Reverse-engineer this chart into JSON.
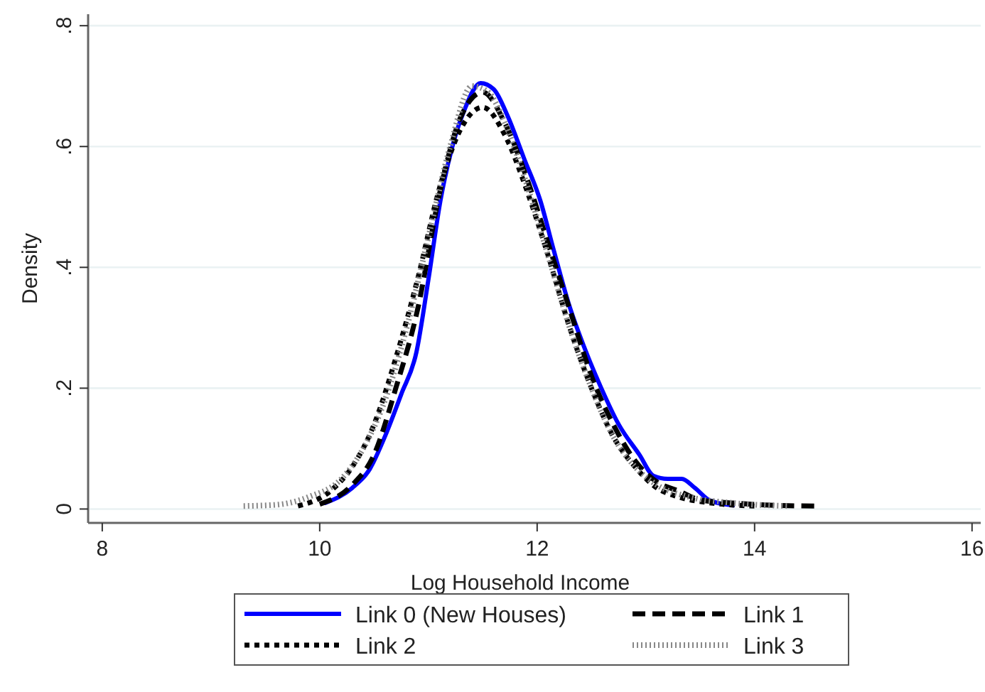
{
  "chart_data": {
    "type": "line",
    "xlabel": "Log Household Income",
    "ylabel": "Density",
    "xlim": [
      7.87,
      16.08
    ],
    "ylim": [
      -0.023,
      0.819
    ],
    "xticks": [
      8,
      10,
      12,
      14,
      16
    ],
    "yticks": [
      0,
      {
        "value": 0.2,
        "label": ".2"
      },
      {
        "value": 0.4,
        "label": ".4"
      },
      {
        "value": 0.6,
        "label": ".6"
      },
      {
        "value": 0.8,
        "label": ".8"
      }
    ],
    "grid": "y",
    "legend": "bottom",
    "series": [
      {
        "name": "Link 0 (New Houses)",
        "color": "#0000ff",
        "line_style": "solid",
        "x": [
          10.05,
          10.3,
          10.46,
          10.6,
          10.75,
          10.89,
          11.0,
          11.11,
          11.22,
          11.33,
          11.48,
          11.6,
          11.73,
          11.88,
          12.03,
          12.15,
          12.29,
          12.45,
          12.59,
          12.75,
          12.94,
          13.07,
          13.2,
          13.33,
          13.45,
          13.59,
          13.8
        ],
        "values": [
          0.01,
          0.035,
          0.066,
          0.12,
          0.19,
          0.26,
          0.38,
          0.51,
          0.6,
          0.66,
          0.705,
          0.695,
          0.65,
          0.58,
          0.51,
          0.43,
          0.34,
          0.26,
          0.2,
          0.14,
          0.09,
          0.055,
          0.05,
          0.05,
          0.035,
          0.014,
          0.006
        ]
      },
      {
        "name": "Link 1",
        "color": "#000000",
        "line_style": "dashed",
        "x": [
          10.0,
          10.3,
          10.5,
          10.7,
          10.9,
          11.1,
          11.3,
          11.5,
          11.7,
          11.9,
          12.1,
          12.3,
          12.5,
          12.7,
          12.9,
          13.1,
          13.3,
          13.5,
          13.8,
          14.2,
          14.55
        ],
        "values": [
          0.008,
          0.04,
          0.09,
          0.2,
          0.33,
          0.52,
          0.65,
          0.69,
          0.64,
          0.55,
          0.44,
          0.33,
          0.22,
          0.14,
          0.08,
          0.045,
          0.03,
          0.015,
          0.01,
          0.006,
          0.005
        ]
      },
      {
        "name": "Link 2",
        "color": "#000000",
        "line_style": "dotted",
        "x": [
          9.8,
          10.1,
          10.3,
          10.5,
          10.7,
          10.9,
          11.1,
          11.3,
          11.5,
          11.7,
          11.9,
          12.1,
          12.3,
          12.5,
          12.7,
          12.9,
          13.1,
          13.3,
          13.6,
          14.0
        ],
        "values": [
          0.005,
          0.03,
          0.07,
          0.14,
          0.25,
          0.38,
          0.53,
          0.63,
          0.665,
          0.62,
          0.53,
          0.42,
          0.3,
          0.2,
          0.12,
          0.07,
          0.035,
          0.02,
          0.01,
          0.005
        ]
      },
      {
        "name": "Link 3",
        "color": "#888888",
        "line_style": "hairdot",
        "x": [
          9.3,
          9.6,
          9.9,
          10.2,
          10.4,
          10.6,
          10.8,
          11.0,
          11.2,
          11.4,
          11.55,
          11.7,
          11.9,
          12.1,
          12.3,
          12.5,
          12.7,
          12.9,
          13.1,
          13.4,
          13.8,
          14.3
        ],
        "values": [
          0.005,
          0.007,
          0.02,
          0.05,
          0.1,
          0.18,
          0.3,
          0.45,
          0.6,
          0.7,
          0.69,
          0.64,
          0.54,
          0.42,
          0.3,
          0.2,
          0.12,
          0.07,
          0.04,
          0.02,
          0.01,
          0.005
        ]
      }
    ]
  }
}
